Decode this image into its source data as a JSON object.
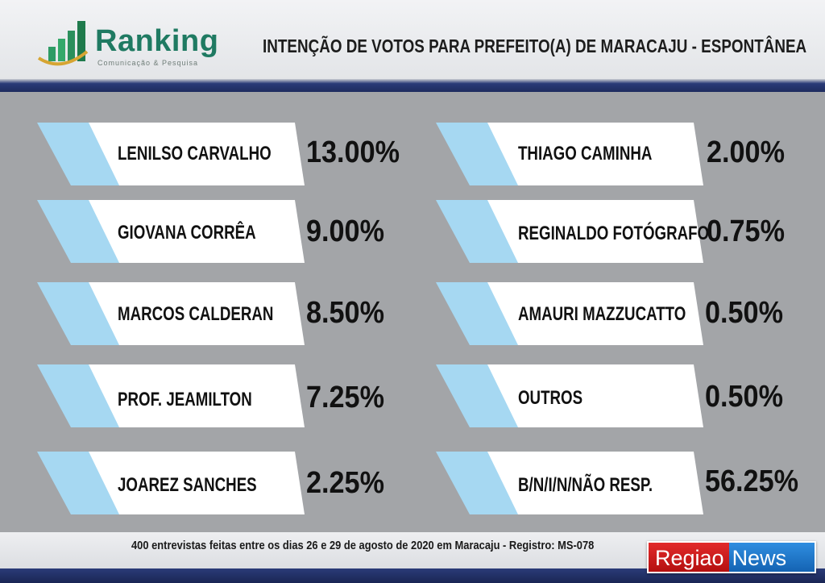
{
  "header": {
    "brand": "Ranking",
    "brand_sub": "Comunicação & Pesquisa",
    "title": "INTENÇÃO DE VOTOS PARA PREFEITO(A) DE MARACAJU - ESPONTÂNEA"
  },
  "left_column": [
    {
      "name": "LENILSO CARVALHO",
      "pct": "13.00%"
    },
    {
      "name": "GIOVANA CORRÊA",
      "pct": "9.00%"
    },
    {
      "name": "MARCOS CALDERAN",
      "pct": "8.50%"
    },
    {
      "name": "PROF. JEAMILTON",
      "pct": "7.25%"
    },
    {
      "name": "JOAREZ SANCHES",
      "pct": "2.25%"
    }
  ],
  "right_column": [
    {
      "name": "THIAGO CAMINHA",
      "pct": "2.00%"
    },
    {
      "name": "REGINALDO FOTÓGRAFO",
      "pct": "0.75%"
    },
    {
      "name": "AMAURI MAZZUCATTO",
      "pct": "0.50%"
    },
    {
      "name": "OUTROS",
      "pct": "0.50%"
    },
    {
      "name": "B/N/I/N/NÃO RESP.",
      "pct": "56.25%"
    }
  ],
  "footer": {
    "note": "400 entrevistas feitas entre os  dias 26 e 29 de agosto de 2020 em Maracaju - Registro:  MS-078",
    "watermark_part1": "Regiao",
    "watermark_part2": "News"
  },
  "colors": {
    "accent_light_blue": "#a6d8f2",
    "band_navy": "#1e2c5e",
    "brand_green": "#1f7a62"
  }
}
